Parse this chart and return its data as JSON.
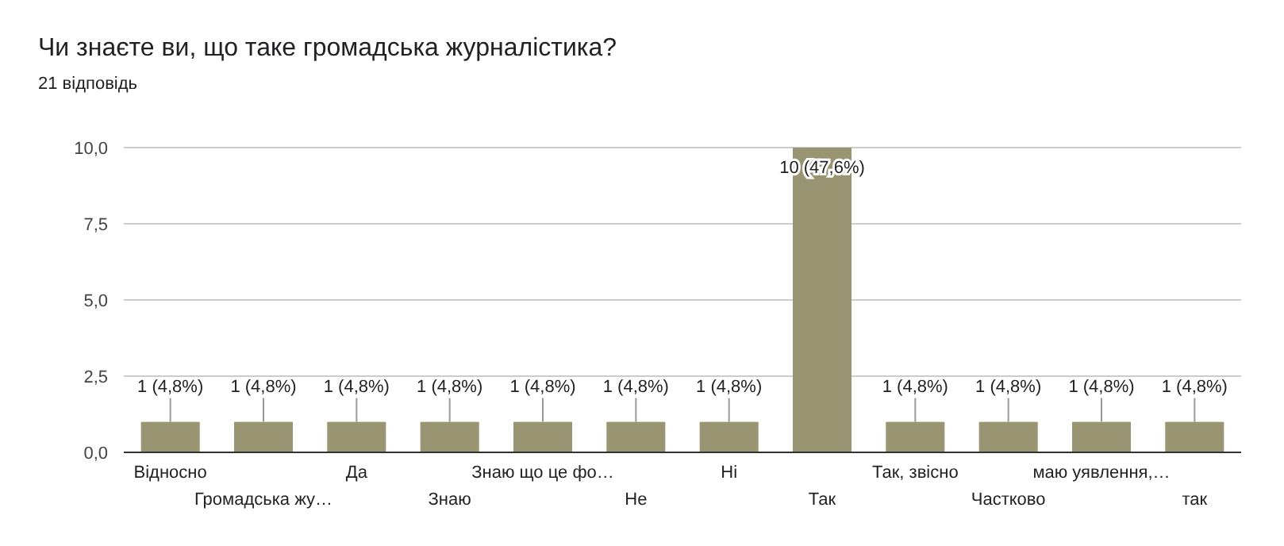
{
  "chart_data": {
    "type": "bar",
    "title": "Чи знаєте ви, що таке громадська журналістика?",
    "subtitle": "21 відповідь",
    "categories": [
      "Відносно",
      "Громадська жу…",
      "Да",
      "Знаю",
      "Знаю що це фо…",
      "Не",
      "Ні",
      "Так",
      "Так, звісно",
      "Частково",
      "маю уявлення,…",
      "так"
    ],
    "values": [
      1,
      1,
      1,
      1,
      1,
      1,
      1,
      10,
      1,
      1,
      1,
      1
    ],
    "value_labels": [
      "1 (4,8%)",
      "1 (4,8%)",
      "1 (4,8%)",
      "1 (4,8%)",
      "1 (4,8%)",
      "1 (4,8%)",
      "1 (4,8%)",
      "10 (47,6%)",
      "1 (4,8%)",
      "1 (4,8%)",
      "1 (4,8%)",
      "1 (4,8%)"
    ],
    "color": "#999472",
    "ylim": [
      0,
      10
    ],
    "yticks": [
      {
        "value": 0,
        "label": "0,0"
      },
      {
        "value": 2.5,
        "label": "2,5"
      },
      {
        "value": 5,
        "label": "5,0"
      },
      {
        "value": 7.5,
        "label": "7,5"
      },
      {
        "value": 10,
        "label": "10,0"
      }
    ],
    "grid": "y"
  }
}
